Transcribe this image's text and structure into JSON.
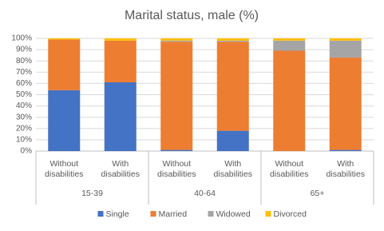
{
  "chart_data": {
    "type": "stacked_bar",
    "title": "Marital status, male (%)",
    "categories": [
      "Without disabilities",
      "With disabilities",
      "Without disabilities",
      "With disabilities",
      "Without disabilities",
      "With disabilities"
    ],
    "category_groups": [
      "15-39",
      "40-64",
      "65+"
    ],
    "series": [
      {
        "name": "Single",
        "color": "#4472c4",
        "values": [
          54,
          61,
          1,
          18,
          0,
          1
        ]
      },
      {
        "name": "Married",
        "color": "#ed7d31",
        "values": [
          45,
          37,
          96,
          79,
          89,
          82
        ]
      },
      {
        "name": "Widowed",
        "color": "#a5a5a5",
        "values": [
          0,
          0,
          1,
          1,
          9,
          15
        ]
      },
      {
        "name": "Divorced",
        "color": "#ffc000",
        "values": [
          1,
          2,
          2,
          2,
          2,
          2
        ]
      }
    ],
    "ylim": [
      0,
      100
    ],
    "yticks": [
      {
        "value": 0,
        "label": "0%"
      },
      {
        "value": 10,
        "label": "10%"
      },
      {
        "value": 20,
        "label": "20%"
      },
      {
        "value": 30,
        "label": "30%"
      },
      {
        "value": 40,
        "label": "40%"
      },
      {
        "value": 50,
        "label": "50%"
      },
      {
        "value": 60,
        "label": "60%"
      },
      {
        "value": 70,
        "label": "70%"
      },
      {
        "value": 80,
        "label": "80%"
      },
      {
        "value": 90,
        "label": "90%"
      },
      {
        "value": 100,
        "label": "100%"
      }
    ],
    "grid": true,
    "legend": "bottom"
  }
}
